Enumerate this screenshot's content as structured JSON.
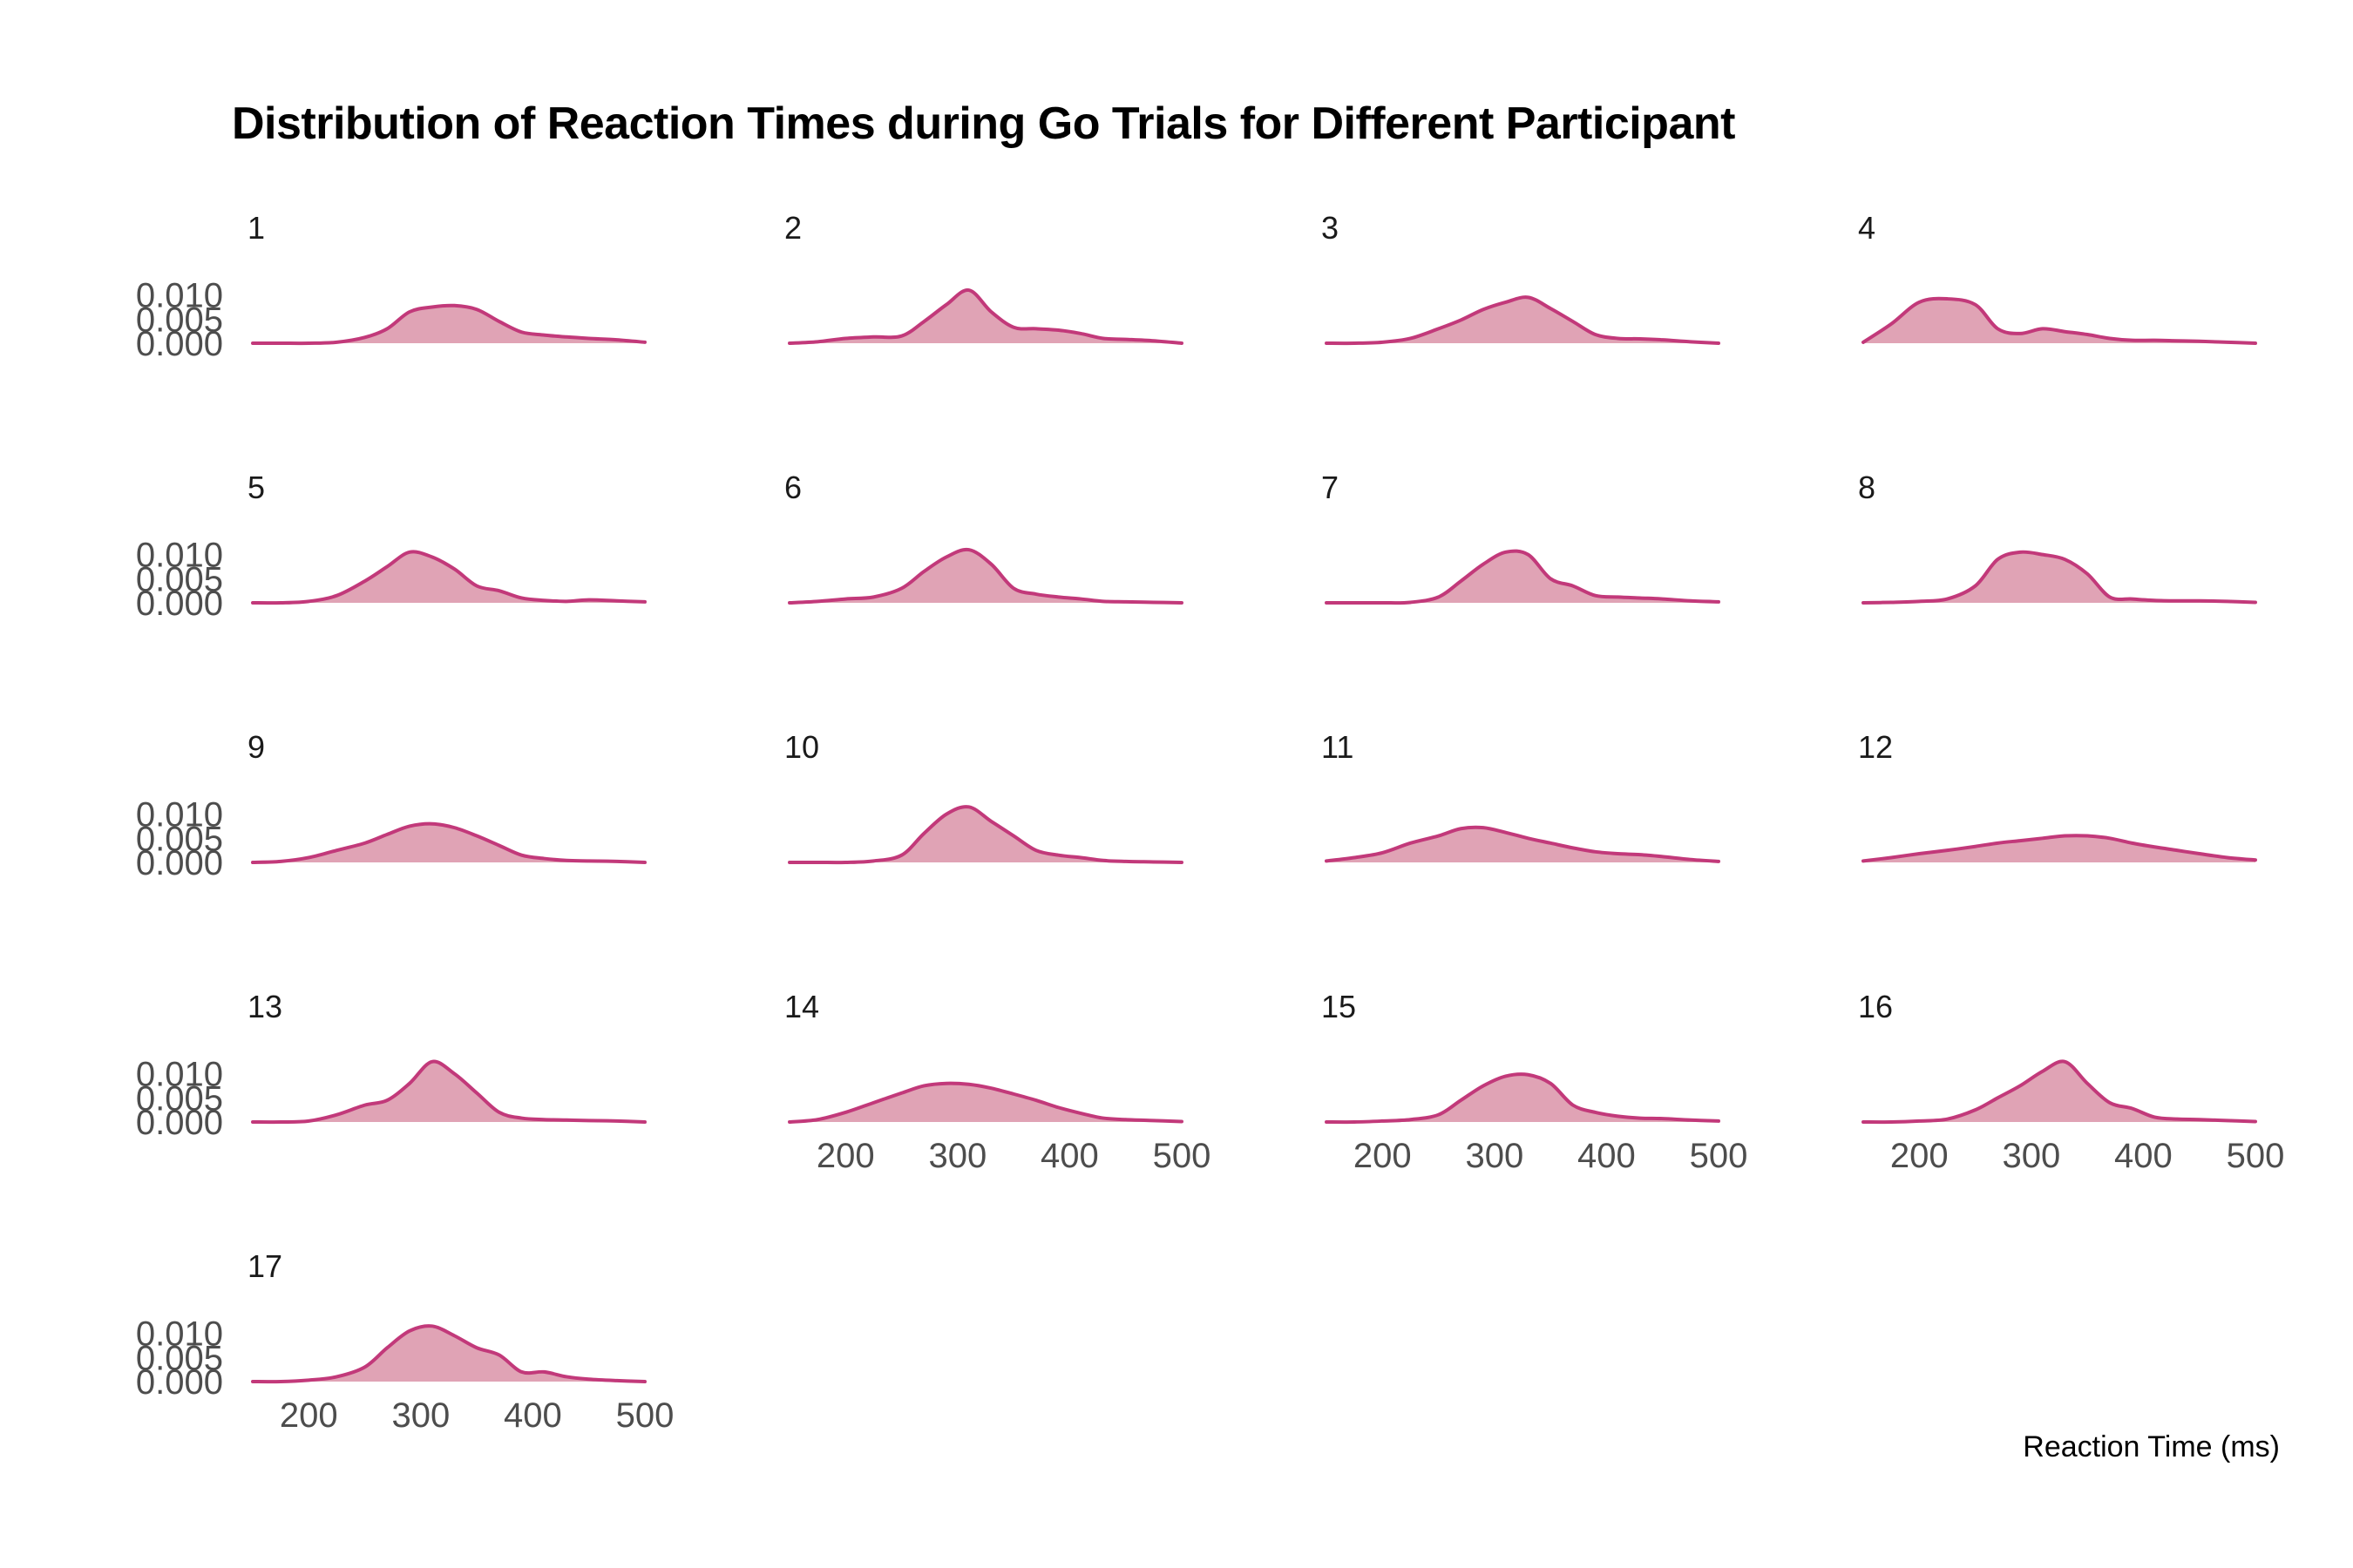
{
  "chart_data": {
    "type": "area",
    "title": "Distribution of Reaction Times during Go Trials for Different Participant",
    "xlabel": "Reaction Time (ms)",
    "ylabel": "",
    "xlim": [
      150,
      500
    ],
    "ylim": [
      0,
      0.013
    ],
    "x_ticks": [
      200,
      300,
      400,
      500
    ],
    "x_tick_labels": [
      "200",
      "300",
      "400",
      "500"
    ],
    "y_ticks": [
      0,
      0.005,
      0.01
    ],
    "y_tick_labels": [
      "0.000",
      "0.005",
      "0.010"
    ],
    "layout": "facet grid, 4 columns, free x-tick labels only on bottom panels",
    "colors": {
      "fill": "#e0a3b5",
      "line": "#c2397a"
    },
    "grid": false,
    "x": [
      150,
      175,
      200,
      225,
      250,
      270,
      290,
      310,
      330,
      350,
      370,
      390,
      410,
      430,
      450,
      475,
      500
    ],
    "series": [
      {
        "name": "1",
        "values": [
          0.0,
          0.0,
          0.0,
          0.0002,
          0.0012,
          0.003,
          0.0065,
          0.0075,
          0.0078,
          0.007,
          0.0045,
          0.0023,
          0.0017,
          0.0013,
          0.001,
          0.0007,
          0.0002
        ]
      },
      {
        "name": "2",
        "values": [
          0.0,
          0.0003,
          0.001,
          0.0013,
          0.0015,
          0.0045,
          0.008,
          0.011,
          0.0065,
          0.0033,
          0.003,
          0.0027,
          0.002,
          0.001,
          0.0008,
          0.0005,
          0.0
        ]
      },
      {
        "name": "3",
        "values": [
          0.0,
          0.0,
          0.0002,
          0.001,
          0.003,
          0.0048,
          0.007,
          0.0085,
          0.0095,
          0.0072,
          0.0045,
          0.0018,
          0.001,
          0.0009,
          0.0007,
          0.0003,
          0.0
        ]
      },
      {
        "name": "4",
        "values": [
          0.0002,
          0.004,
          0.0085,
          0.0092,
          0.008,
          0.003,
          0.002,
          0.003,
          0.0024,
          0.0018,
          0.001,
          0.0006,
          0.0006,
          0.0005,
          0.0004,
          0.0002,
          0.0
        ]
      },
      {
        "name": "5",
        "values": [
          0.0,
          0.0,
          0.0003,
          0.0015,
          0.0045,
          0.0075,
          0.0105,
          0.0095,
          0.007,
          0.0035,
          0.0025,
          0.001,
          0.0005,
          0.0003,
          0.0006,
          0.0004,
          0.0002
        ]
      },
      {
        "name": "6",
        "values": [
          0.0,
          0.0003,
          0.0008,
          0.0012,
          0.003,
          0.0065,
          0.0095,
          0.011,
          0.008,
          0.003,
          0.0018,
          0.0012,
          0.0008,
          0.0003,
          0.0002,
          0.0001,
          0.0
        ]
      },
      {
        "name": "7",
        "values": [
          0.0,
          0.0,
          0.0,
          0.0001,
          0.0012,
          0.0045,
          0.008,
          0.0105,
          0.01,
          0.005,
          0.0035,
          0.0015,
          0.0012,
          0.001,
          0.0008,
          0.0004,
          0.0002
        ]
      },
      {
        "name": "8",
        "values": [
          0.0,
          0.0001,
          0.0003,
          0.0008,
          0.0035,
          0.009,
          0.0105,
          0.01,
          0.009,
          0.006,
          0.0012,
          0.0008,
          0.0005,
          0.0004,
          0.0004,
          0.0003,
          0.0001
        ]
      },
      {
        "name": "9",
        "values": [
          0.0,
          0.0002,
          0.001,
          0.0025,
          0.004,
          0.0058,
          0.0075,
          0.008,
          0.0072,
          0.0055,
          0.0035,
          0.0015,
          0.0008,
          0.0004,
          0.0003,
          0.0002,
          0.0
        ]
      },
      {
        "name": "10",
        "values": [
          0.0,
          0.0,
          0.0,
          0.0003,
          0.0015,
          0.006,
          0.01,
          0.0115,
          0.0085,
          0.0055,
          0.0025,
          0.0015,
          0.001,
          0.0004,
          0.0002,
          0.0001,
          0.0
        ]
      },
      {
        "name": "11",
        "values": [
          0.0003,
          0.001,
          0.002,
          0.004,
          0.0055,
          0.007,
          0.0072,
          0.0062,
          0.005,
          0.004,
          0.003,
          0.0022,
          0.0018,
          0.0016,
          0.0012,
          0.0006,
          0.0002
        ]
      },
      {
        "name": "12",
        "values": [
          0.0003,
          0.001,
          0.0018,
          0.0025,
          0.0033,
          0.004,
          0.0045,
          0.005,
          0.0055,
          0.0055,
          0.005,
          0.004,
          0.0032,
          0.0025,
          0.0018,
          0.001,
          0.0005
        ]
      },
      {
        "name": "13",
        "values": [
          0.0,
          0.0,
          0.0002,
          0.0015,
          0.0035,
          0.0045,
          0.008,
          0.0125,
          0.01,
          0.006,
          0.002,
          0.0008,
          0.0005,
          0.0004,
          0.0003,
          0.0002,
          0.0
        ]
      },
      {
        "name": "14",
        "values": [
          0.0,
          0.0005,
          0.002,
          0.004,
          0.006,
          0.0075,
          0.008,
          0.0078,
          0.007,
          0.0058,
          0.0045,
          0.003,
          0.0018,
          0.0008,
          0.0005,
          0.0003,
          0.0001
        ]
      },
      {
        "name": "15",
        "values": [
          0.0,
          0.0,
          0.0002,
          0.0005,
          0.0015,
          0.0045,
          0.0075,
          0.0095,
          0.0098,
          0.008,
          0.0035,
          0.002,
          0.0012,
          0.0008,
          0.0007,
          0.0004,
          0.0002
        ]
      },
      {
        "name": "16",
        "values": [
          0.0,
          0.0,
          0.0002,
          0.0006,
          0.0025,
          0.005,
          0.0075,
          0.0105,
          0.0125,
          0.008,
          0.004,
          0.0028,
          0.001,
          0.0006,
          0.0005,
          0.0003,
          0.0001
        ]
      },
      {
        "name": "17",
        "values": [
          0.0,
          0.0,
          0.0003,
          0.001,
          0.003,
          0.007,
          0.0105,
          0.0115,
          0.0095,
          0.007,
          0.0055,
          0.002,
          0.002,
          0.001,
          0.0005,
          0.0002,
          0.0
        ]
      }
    ]
  }
}
